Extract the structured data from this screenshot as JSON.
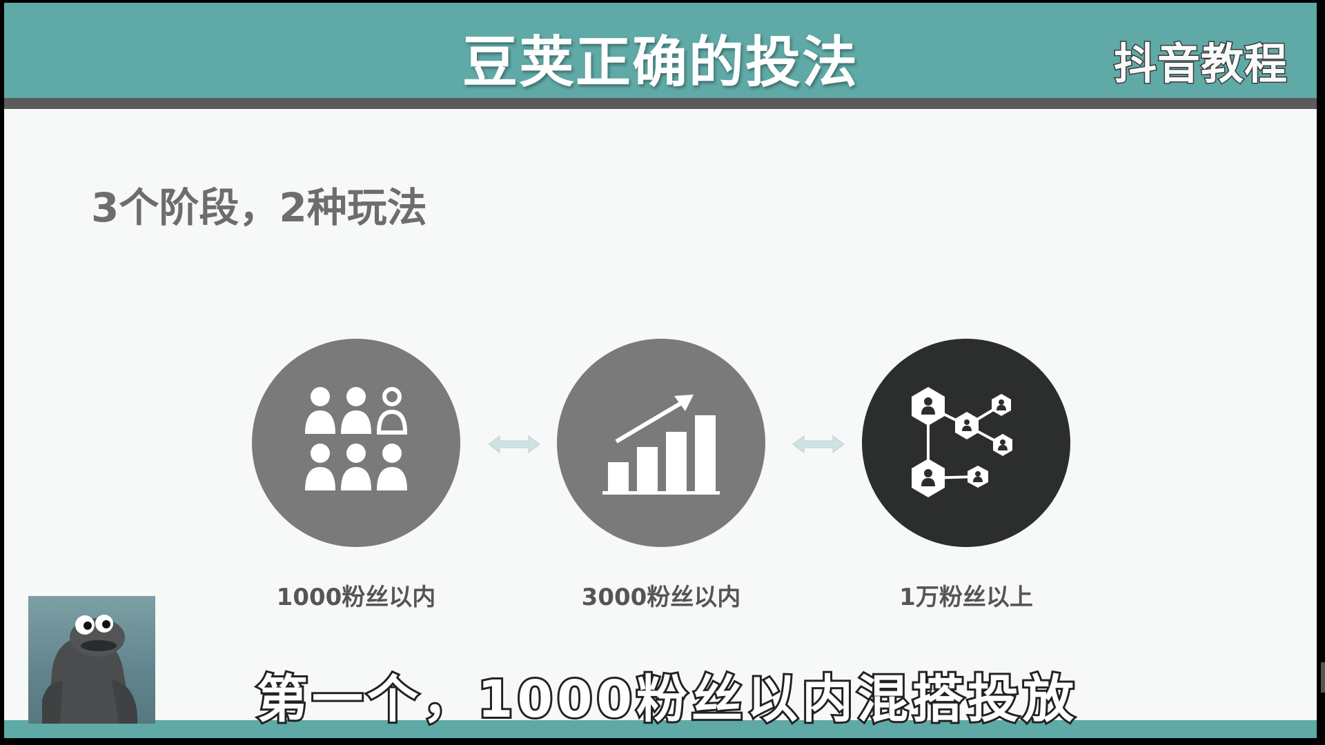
{
  "header": {
    "title": "豆荚正确的投法",
    "brand": "抖音教程"
  },
  "subtitle": "3个阶段，2种玩法",
  "stages": [
    {
      "label": "1000粉丝以内",
      "icon": "people-group-icon",
      "color": "#7a7a7a"
    },
    {
      "label": "3000粉丝以内",
      "icon": "growth-chart-icon",
      "color": "#7a7a7a"
    },
    {
      "label": "1万粉丝以上",
      "icon": "network-icon",
      "color": "#2c2d2d"
    }
  ],
  "caption": "第一个，1000粉丝以内混搭投放",
  "colors": {
    "header": "#5fa9a6",
    "bar": "#5b5b5b",
    "background": "#f7f9f8",
    "circle_gray": "#7a7a7a",
    "circle_dark": "#2c2d2d",
    "arrow": "#cde3e1"
  }
}
